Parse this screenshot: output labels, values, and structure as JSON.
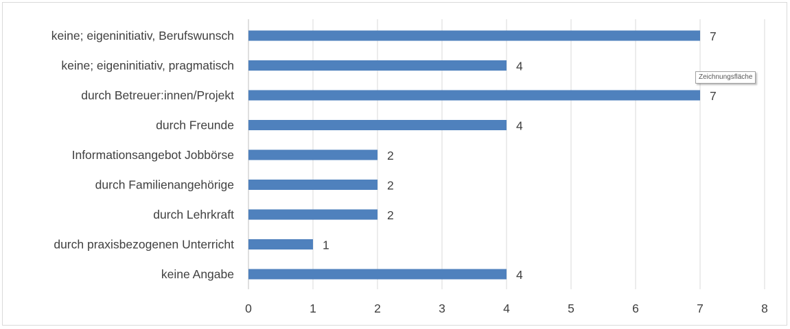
{
  "chart_data": {
    "type": "bar",
    "orientation": "horizontal",
    "categories": [
      "keine; eigeninitiativ, Berufswunsch",
      "keine; eigeninitiativ, pragmatisch",
      "durch Betreuer:innen/Projekt",
      "durch Freunde",
      "Informationsangebot Jobbörse",
      "durch Familienangehörige",
      "durch Lehrkraft",
      "durch praxisbezogenen Unterricht",
      "keine Angabe"
    ],
    "values": [
      7,
      4,
      7,
      4,
      2,
      2,
      2,
      1,
      4
    ],
    "xlim": [
      0,
      8
    ],
    "xticks": [
      "0",
      "1",
      "2",
      "3",
      "4",
      "5",
      "6",
      "7",
      "8"
    ],
    "grid": true,
    "data_labels": true,
    "bar_color": "#4f81bd"
  },
  "tooltip": {
    "text": "Zeichnungsfläche"
  }
}
